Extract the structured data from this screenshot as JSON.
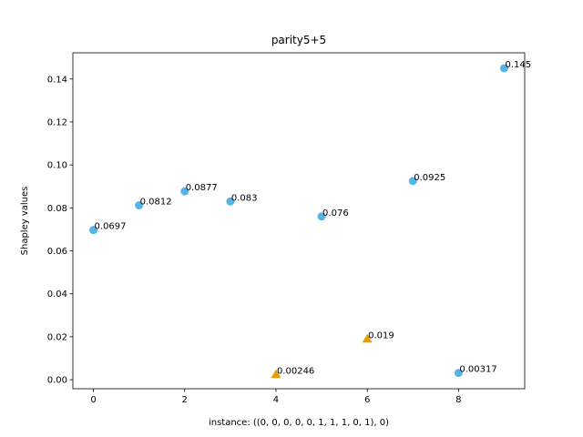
{
  "chart_data": {
    "type": "scatter",
    "title": "parity5+5",
    "xlabel": "instance: ((0, 0, 0, 0, 0, 1, 1, 1, 0, 1), 0)",
    "ylabel": "Shapley values",
    "xlim": [
      -0.45,
      9.45
    ],
    "ylim": [
      -0.0042,
      0.1522
    ],
    "xticks": [
      0,
      2,
      4,
      6,
      8
    ],
    "xtick_labels": [
      "0",
      "2",
      "4",
      "6",
      "8"
    ],
    "yticks": [
      0.0,
      0.02,
      0.04,
      0.06,
      0.08,
      0.1,
      0.12,
      0.14
    ],
    "ytick_labels": [
      "0.00",
      "0.02",
      "0.04",
      "0.06",
      "0.08",
      "0.10",
      "0.12",
      "0.14"
    ],
    "grid": false,
    "series": [
      {
        "marker": "circle",
        "color": "#56B4E9",
        "points": [
          {
            "x": 0,
            "y": 0.0697,
            "label": "0.0697"
          },
          {
            "x": 1,
            "y": 0.0812,
            "label": "0.0812"
          },
          {
            "x": 2,
            "y": 0.0877,
            "label": "0.0877"
          },
          {
            "x": 3,
            "y": 0.083,
            "label": "0.083"
          },
          {
            "x": 5,
            "y": 0.076,
            "label": "0.076"
          },
          {
            "x": 7,
            "y": 0.0925,
            "label": "0.0925"
          },
          {
            "x": 8,
            "y": 0.00317,
            "label": "0.00317"
          },
          {
            "x": 9,
            "y": 0.145,
            "label": "0.145"
          }
        ]
      },
      {
        "marker": "triangle",
        "color": "#E69F00",
        "points": [
          {
            "x": 4,
            "y": 0.00246,
            "label": "0.00246"
          },
          {
            "x": 6,
            "y": 0.019,
            "label": "0.019"
          }
        ]
      }
    ]
  }
}
